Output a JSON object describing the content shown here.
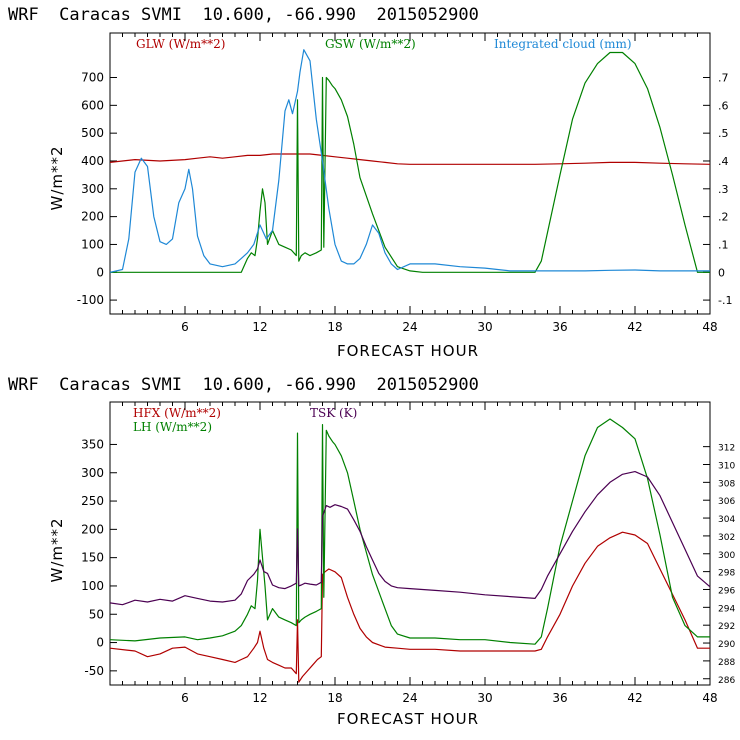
{
  "chart_data": [
    {
      "type": "line",
      "title": "WRF  Caracas SVMI  10.600, -66.990  2015052900",
      "xlabel": "FORECAST HOUR",
      "ylabel": "W/m**2",
      "xlim": [
        0,
        48
      ],
      "ylim": [
        -150,
        860
      ],
      "y2lim": [
        -0.15,
        0.86
      ],
      "xticks": [
        6,
        12,
        18,
        24,
        30,
        36,
        42,
        48
      ],
      "yticks": [
        -100,
        0,
        100,
        200,
        300,
        400,
        500,
        600,
        700
      ],
      "y2ticks": [
        -0.1,
        0,
        0.1,
        0.2,
        0.3,
        0.4,
        0.5,
        0.6,
        0.7
      ],
      "y2ticklabels": [
        "-.1",
        "0",
        ".1",
        ".2",
        ".3",
        ".4",
        ".5",
        ".6",
        ".7"
      ],
      "series": [
        {
          "name": "GLW (W/m**2)",
          "color": "#b00000",
          "axis": "left",
          "x": [
            0,
            2,
            4,
            6,
            7,
            8,
            9,
            10,
            11,
            12,
            13,
            14,
            15,
            16,
            17,
            18,
            19,
            20,
            21,
            22,
            23,
            24,
            26,
            28,
            30,
            32,
            34,
            36,
            38,
            40,
            42,
            44,
            46,
            48
          ],
          "y": [
            395,
            405,
            400,
            405,
            410,
            415,
            410,
            415,
            420,
            420,
            425,
            425,
            425,
            425,
            420,
            415,
            410,
            405,
            400,
            395,
            390,
            388,
            388,
            388,
            388,
            388,
            388,
            390,
            392,
            395,
            395,
            392,
            390,
            388
          ]
        },
        {
          "name": "GSW (W/m**2)",
          "color": "#008000",
          "axis": "left",
          "x": [
            0,
            5,
            10.5,
            11,
            11.3,
            11.6,
            11.8,
            12,
            12.2,
            12.4,
            12.6,
            13,
            13.5,
            14,
            14.5,
            14.9,
            15,
            15.1,
            15.3,
            15.6,
            16,
            16.5,
            16.9,
            17,
            17.1,
            17.3,
            17.5,
            17.8,
            18,
            18.5,
            19,
            19.5,
            20,
            21,
            22,
            23,
            24,
            25,
            30,
            34,
            34.5,
            36,
            37,
            38,
            39,
            40,
            41,
            42,
            43,
            44,
            45,
            46,
            47,
            48
          ],
          "y": [
            0,
            0,
            0,
            50,
            70,
            60,
            120,
            220,
            300,
            250,
            100,
            150,
            100,
            90,
            80,
            60,
            620,
            40,
            60,
            70,
            60,
            70,
            80,
            700,
            90,
            700,
            690,
            670,
            660,
            620,
            560,
            460,
            340,
            210,
            90,
            20,
            5,
            0,
            0,
            0,
            40,
            350,
            550,
            680,
            750,
            790,
            790,
            750,
            660,
            520,
            350,
            170,
            0,
            0
          ]
        },
        {
          "name": "Integrated cloud (mm)",
          "color": "#1e88d6",
          "axis": "right",
          "x": [
            0,
            1,
            1.5,
            2,
            2.5,
            3,
            3.5,
            4,
            4.5,
            5,
            5.5,
            6,
            6.3,
            6.6,
            7,
            7.5,
            8,
            9,
            10,
            10.5,
            11,
            11.5,
            12,
            12.5,
            13,
            13.5,
            14,
            14.3,
            14.6,
            15,
            15.2,
            15.5,
            16,
            16.5,
            17,
            17.5,
            18,
            18.5,
            19,
            19.5,
            20,
            20.5,
            21,
            21.5,
            22,
            22.5,
            23,
            24,
            26,
            28,
            30,
            32,
            34,
            36,
            38,
            40,
            42,
            44,
            46,
            48
          ],
          "y": [
            0,
            0.01,
            0.12,
            0.36,
            0.41,
            0.38,
            0.2,
            0.11,
            0.1,
            0.12,
            0.25,
            0.3,
            0.37,
            0.3,
            0.13,
            0.06,
            0.03,
            0.02,
            0.03,
            0.05,
            0.07,
            0.1,
            0.17,
            0.12,
            0.15,
            0.33,
            0.58,
            0.62,
            0.57,
            0.65,
            0.72,
            0.8,
            0.76,
            0.55,
            0.4,
            0.23,
            0.1,
            0.04,
            0.03,
            0.03,
            0.05,
            0.1,
            0.17,
            0.14,
            0.07,
            0.03,
            0.01,
            0.03,
            0.03,
            0.02,
            0.015,
            0.005,
            0.005,
            0.005,
            0.005,
            0.007,
            0.008,
            0.005,
            0.005,
            0.005
          ]
        }
      ]
    },
    {
      "type": "line",
      "title": "WRF  Caracas SVMI  10.600, -66.990  2015052900",
      "xlabel": "FORECAST HOUR",
      "ylabel": "W/m**2",
      "xlim": [
        0,
        48
      ],
      "ylim": [
        -75,
        425
      ],
      "y2lim": [
        285.3,
        317
      ],
      "xticks": [
        6,
        12,
        18,
        24,
        30,
        36,
        42,
        48
      ],
      "yticks": [
        -50,
        0,
        50,
        100,
        150,
        200,
        250,
        300,
        350
      ],
      "y2ticks": [
        286,
        288,
        290,
        292,
        294,
        296,
        298,
        300,
        302,
        304,
        306,
        308,
        310,
        312
      ],
      "series": [
        {
          "name": "HFX (W/m**2)",
          "color": "#b00000",
          "axis": "left",
          "x": [
            0,
            2,
            3,
            4,
            5,
            6,
            7,
            8,
            9,
            10,
            10.5,
            11,
            11.5,
            11.8,
            12,
            12.3,
            12.6,
            13,
            13.5,
            14,
            14.5,
            14.9,
            15,
            15.1,
            15.4,
            15.8,
            16.2,
            16.6,
            16.9,
            17,
            17.2,
            17.5,
            18,
            18.5,
            19,
            19.5,
            20,
            20.5,
            21,
            22,
            23,
            24,
            26,
            28,
            30,
            32,
            33,
            34,
            34.5,
            35,
            36,
            37,
            38,
            39,
            40,
            41,
            42,
            43,
            44,
            45,
            46,
            47,
            48
          ],
          "y": [
            -10,
            -15,
            -25,
            -20,
            -10,
            -8,
            -20,
            -25,
            -30,
            -35,
            -30,
            -25,
            -10,
            0,
            20,
            -10,
            -30,
            -35,
            -40,
            -45,
            -45,
            -55,
            40,
            -70,
            -60,
            -50,
            -40,
            -30,
            -25,
            120,
            125,
            130,
            125,
            115,
            80,
            50,
            25,
            10,
            0,
            -8,
            -10,
            -12,
            -12,
            -15,
            -15,
            -15,
            -15,
            -15,
            -12,
            10,
            50,
            100,
            140,
            170,
            185,
            195,
            190,
            175,
            130,
            85,
            40,
            -10,
            -10
          ]
        },
        {
          "name": "LH (W/m**2)",
          "color": "#008000",
          "axis": "left",
          "x": [
            0,
            2,
            4,
            6,
            7,
            8,
            9,
            10,
            10.5,
            11,
            11.3,
            11.6,
            11.8,
            12,
            12.2,
            12.4,
            12.6,
            13,
            13.5,
            14,
            14.5,
            14.9,
            15,
            15.1,
            15.3,
            15.6,
            16,
            16.5,
            16.9,
            17,
            17.1,
            17.3,
            17.5,
            17.8,
            18,
            18.5,
            19,
            19.5,
            20,
            21,
            22,
            22.5,
            23,
            24,
            26,
            28,
            30,
            32,
            34,
            34.5,
            35,
            36,
            37,
            38,
            39,
            40,
            41,
            42,
            43,
            44,
            45,
            46,
            47,
            48
          ],
          "y": [
            5,
            3,
            8,
            10,
            5,
            8,
            12,
            20,
            30,
            50,
            65,
            60,
            110,
            200,
            150,
            100,
            40,
            60,
            45,
            40,
            35,
            30,
            370,
            35,
            40,
            45,
            50,
            55,
            60,
            385,
            80,
            375,
            365,
            355,
            350,
            330,
            300,
            250,
            200,
            120,
            60,
            30,
            15,
            8,
            8,
            5,
            5,
            0,
            -3,
            10,
            60,
            170,
            250,
            330,
            380,
            395,
            380,
            360,
            290,
            190,
            80,
            30,
            10,
            10
          ]
        },
        {
          "name": "TSK (K)",
          "color": "#4b0052",
          "axis": "right",
          "x": [
            0,
            1,
            2,
            3,
            4,
            5,
            6,
            7,
            8,
            9,
            10,
            10.5,
            11,
            11.5,
            11.8,
            12,
            12.3,
            12.6,
            13,
            13.5,
            14,
            14.5,
            14.9,
            15,
            15.1,
            15.3,
            15.6,
            16,
            16.5,
            16.9,
            17,
            17.3,
            17.6,
            18,
            18.5,
            19,
            19.5,
            20,
            20.5,
            21,
            21.5,
            22,
            22.5,
            23,
            24,
            26,
            28,
            30,
            32,
            34,
            34.5,
            35,
            36,
            37,
            38,
            39,
            40,
            41,
            42,
            43,
            44,
            45,
            46,
            47,
            48
          ],
          "y": [
            294.5,
            294.3,
            294.8,
            294.6,
            294.9,
            294.7,
            295.3,
            295,
            294.7,
            294.6,
            294.8,
            295.5,
            297,
            297.7,
            298.3,
            299.3,
            298,
            297.8,
            296.5,
            296.2,
            296.1,
            296.4,
            296.7,
            302.8,
            296.4,
            296.5,
            296.7,
            296.6,
            296.5,
            296.8,
            304.2,
            305.4,
            305.2,
            305.5,
            305.3,
            305,
            303.8,
            302.5,
            300.8,
            299.3,
            297.8,
            296.9,
            296.4,
            296.2,
            296.1,
            295.9,
            295.7,
            295.4,
            295.2,
            295,
            296,
            297.5,
            300,
            302.5,
            304.7,
            306.6,
            308,
            308.9,
            309.2,
            308.6,
            306.5,
            303.5,
            300.5,
            297.5,
            296.3
          ]
        }
      ]
    }
  ]
}
